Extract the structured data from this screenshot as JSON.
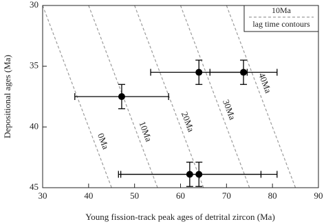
{
  "chart_data": {
    "type": "scatter",
    "xlabel": "Young fission-track peak ages of detrital zircon (Ma)",
    "ylabel": "Depositional ages (Ma)",
    "xlim": [
      30,
      90
    ],
    "xticks": [
      30,
      40,
      50,
      60,
      70,
      80,
      90
    ],
    "ylim": [
      45,
      30
    ],
    "yticks": [
      30,
      35,
      40,
      45
    ],
    "series": [
      {
        "color": "#000000",
        "x": [
          64,
          73.7,
          47.2,
          62,
          64
        ],
        "y": [
          35.5,
          35.5,
          37.5,
          43.9,
          43.9
        ],
        "xerr": [
          10.5,
          7.3,
          10.2,
          15.5,
          17
        ],
        "yerr": [
          1,
          1,
          1,
          1,
          1
        ]
      }
    ],
    "contours": [
      {
        "value": 0,
        "label": "0Ma"
      },
      {
        "value": 10,
        "label": "10Ma"
      },
      {
        "value": 20,
        "label": "20Ma"
      },
      {
        "value": 30,
        "label": "30Ma"
      },
      {
        "value": 40,
        "label": "40Ma"
      }
    ],
    "contour_color": "#9a9a9a",
    "legend": {
      "sample": "10Ma",
      "label": "lag time contours"
    }
  }
}
